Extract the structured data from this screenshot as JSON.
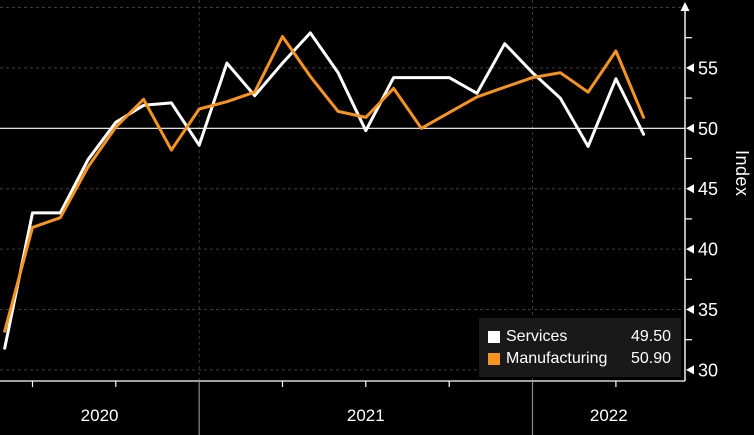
{
  "chart_data": {
    "type": "line",
    "title": "",
    "ylabel": "Index",
    "grid": "dashed horizontal + year dividers",
    "legend_position": "bottom-right",
    "reference_line": 50,
    "y_axis": {
      "side": "right",
      "labeled_ticks": [
        55,
        50,
        45,
        40,
        35,
        30
      ],
      "unlabeled_gridline": 60,
      "minor_ticks": [
        57.5,
        52.5,
        47.5,
        42.5,
        37.5,
        32.5
      ],
      "min": 29,
      "max": 60.5
    },
    "x_axis": {
      "year_labels": [
        "2020",
        "2021",
        "2022"
      ],
      "year_boundaries": [
        "Jan 2021",
        "Jan 2022"
      ],
      "quarter_tick_months": [
        "Jul 2020",
        "Oct 2020",
        "Apr 2021",
        "Jul 2021",
        "Oct 2021",
        "Apr 2022"
      ]
    },
    "categories": [
      "Jun 2020",
      "Jul 2020",
      "Aug 2020",
      "Sep 2020",
      "Oct 2020",
      "Nov 2020",
      "Dec 2020",
      "Jan 2021",
      "Feb 2021",
      "Mar 2021",
      "Apr 2021",
      "May 2021",
      "Jun 2021",
      "Jul 2021",
      "Aug 2021",
      "Sep 2021",
      "Oct 2021",
      "Nov 2021",
      "Dec 2021",
      "Jan 2022",
      "Feb 2022",
      "Mar 2022",
      "Apr 2022",
      "May 2022"
    ],
    "series": [
      {
        "name": "Services",
        "color": "#ffffff",
        "display_value": "49.50",
        "values": [
          31.8,
          43.0,
          43.0,
          47.4,
          50.5,
          51.9,
          52.1,
          48.6,
          55.4,
          52.7,
          55.4,
          57.9,
          54.6,
          49.8,
          54.2,
          54.2,
          54.2,
          52.9,
          57.0,
          54.6,
          52.5,
          48.5,
          54.1,
          49.5
        ]
      },
      {
        "name": "Manufacturing",
        "color": "#F79420",
        "display_value": "50.90",
        "values": [
          33.2,
          41.8,
          42.6,
          46.8,
          50.1,
          52.4,
          48.2,
          51.6,
          52.2,
          53.0,
          57.6,
          54.3,
          51.4,
          50.9,
          53.3,
          50.0,
          51.3,
          52.6,
          53.4,
          54.2,
          54.6,
          53.0,
          56.4,
          50.9
        ]
      }
    ],
    "colors": {
      "background": "#000000",
      "gridline": "#3d3d3d",
      "axis": "#ffffff",
      "year_divider_below_axis": "#8a8a8a",
      "legend_background": "#191919"
    }
  }
}
